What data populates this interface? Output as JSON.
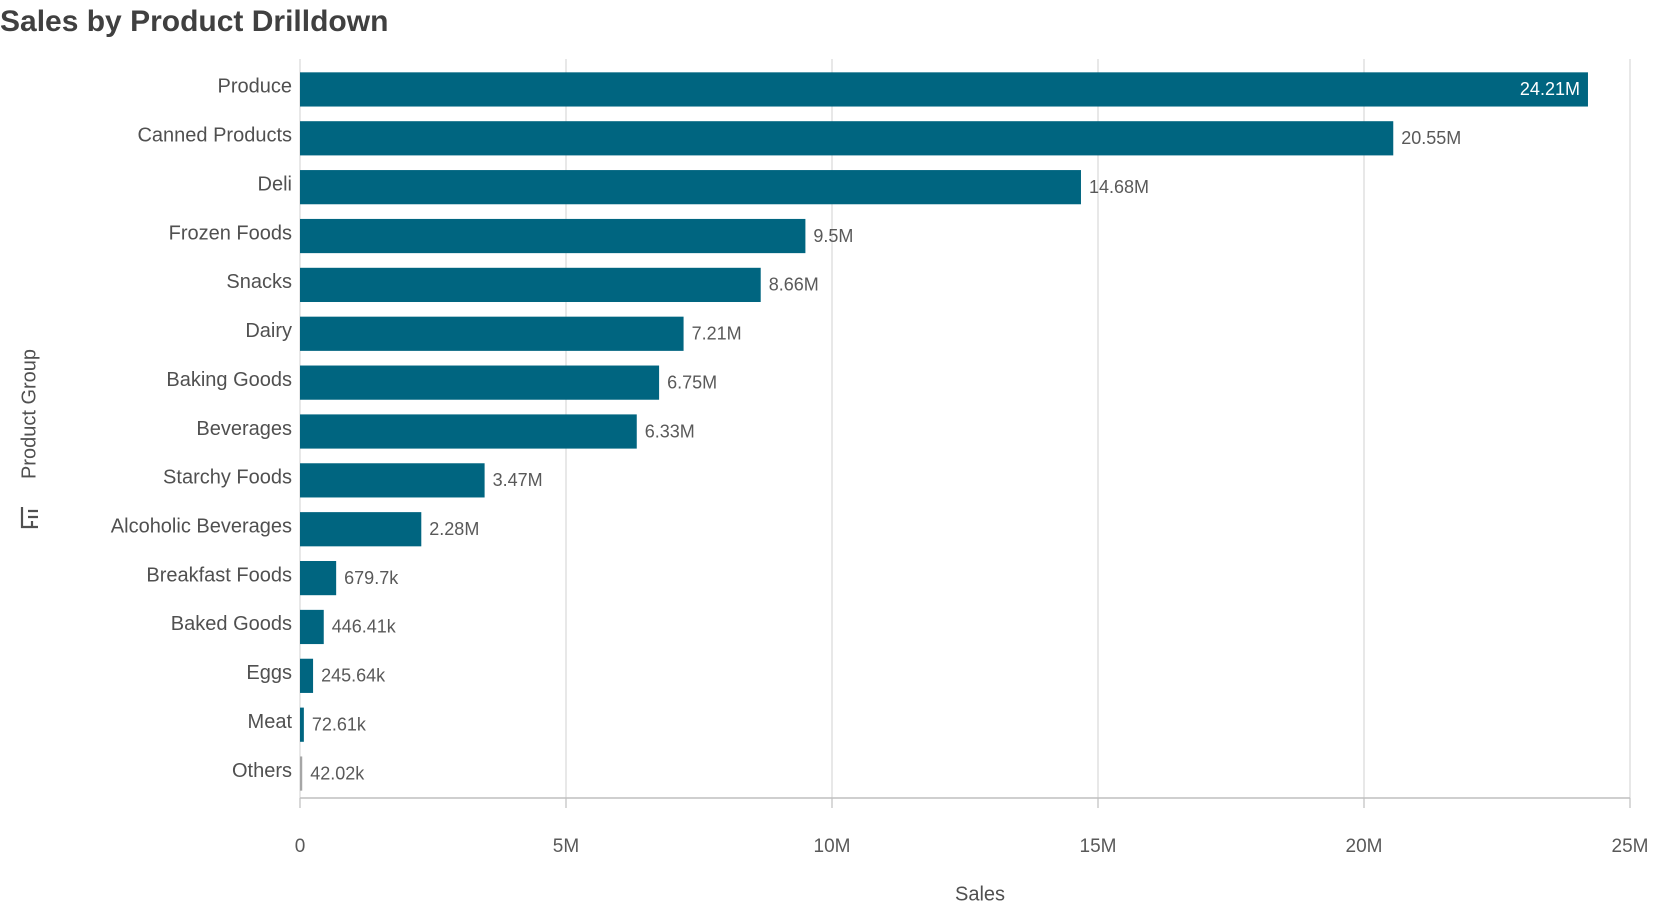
{
  "chart_data": {
    "type": "hbar",
    "title": "Sales by Product Drilldown",
    "x_label": "Sales",
    "y_label": "Product Group",
    "categories": [
      "Produce",
      "Canned Products",
      "Deli",
      "Frozen Foods",
      "Snacks",
      "Dairy",
      "Baking Goods",
      "Beverages",
      "Starchy Foods",
      "Alcoholic Beverages",
      "Breakfast Foods",
      "Baked Goods",
      "Eggs",
      "Meat",
      "Others"
    ],
    "values": [
      24210000,
      20550000,
      14680000,
      9500000,
      8660000,
      7210000,
      6750000,
      6330000,
      3470000,
      2280000,
      679700,
      446410,
      245640,
      72610,
      42020
    ],
    "value_labels": [
      "24.21M",
      "20.55M",
      "14.68M",
      "9.5M",
      "8.66M",
      "7.21M",
      "6.75M",
      "6.33M",
      "3.47M",
      "2.28M",
      "679.7k",
      "446.41k",
      "245.64k",
      "72.61k",
      "42.02k"
    ],
    "colors": [
      "#006580",
      "#006580",
      "#006580",
      "#006580",
      "#006580",
      "#006580",
      "#006580",
      "#006580",
      "#006580",
      "#006580",
      "#006580",
      "#006580",
      "#006580",
      "#006580",
      "#a6a6a6"
    ],
    "xlim": [
      0,
      25000000
    ],
    "xticks": [
      0,
      {
        "value": 5000000,
        "label": "5M"
      },
      {
        "value": 10000000,
        "label": "10M"
      },
      {
        "value": 15000000,
        "label": "15M"
      },
      {
        "value": 20000000,
        "label": "20M"
      },
      {
        "value": 25000000,
        "label": "25M"
      }
    ],
    "grid": true
  }
}
